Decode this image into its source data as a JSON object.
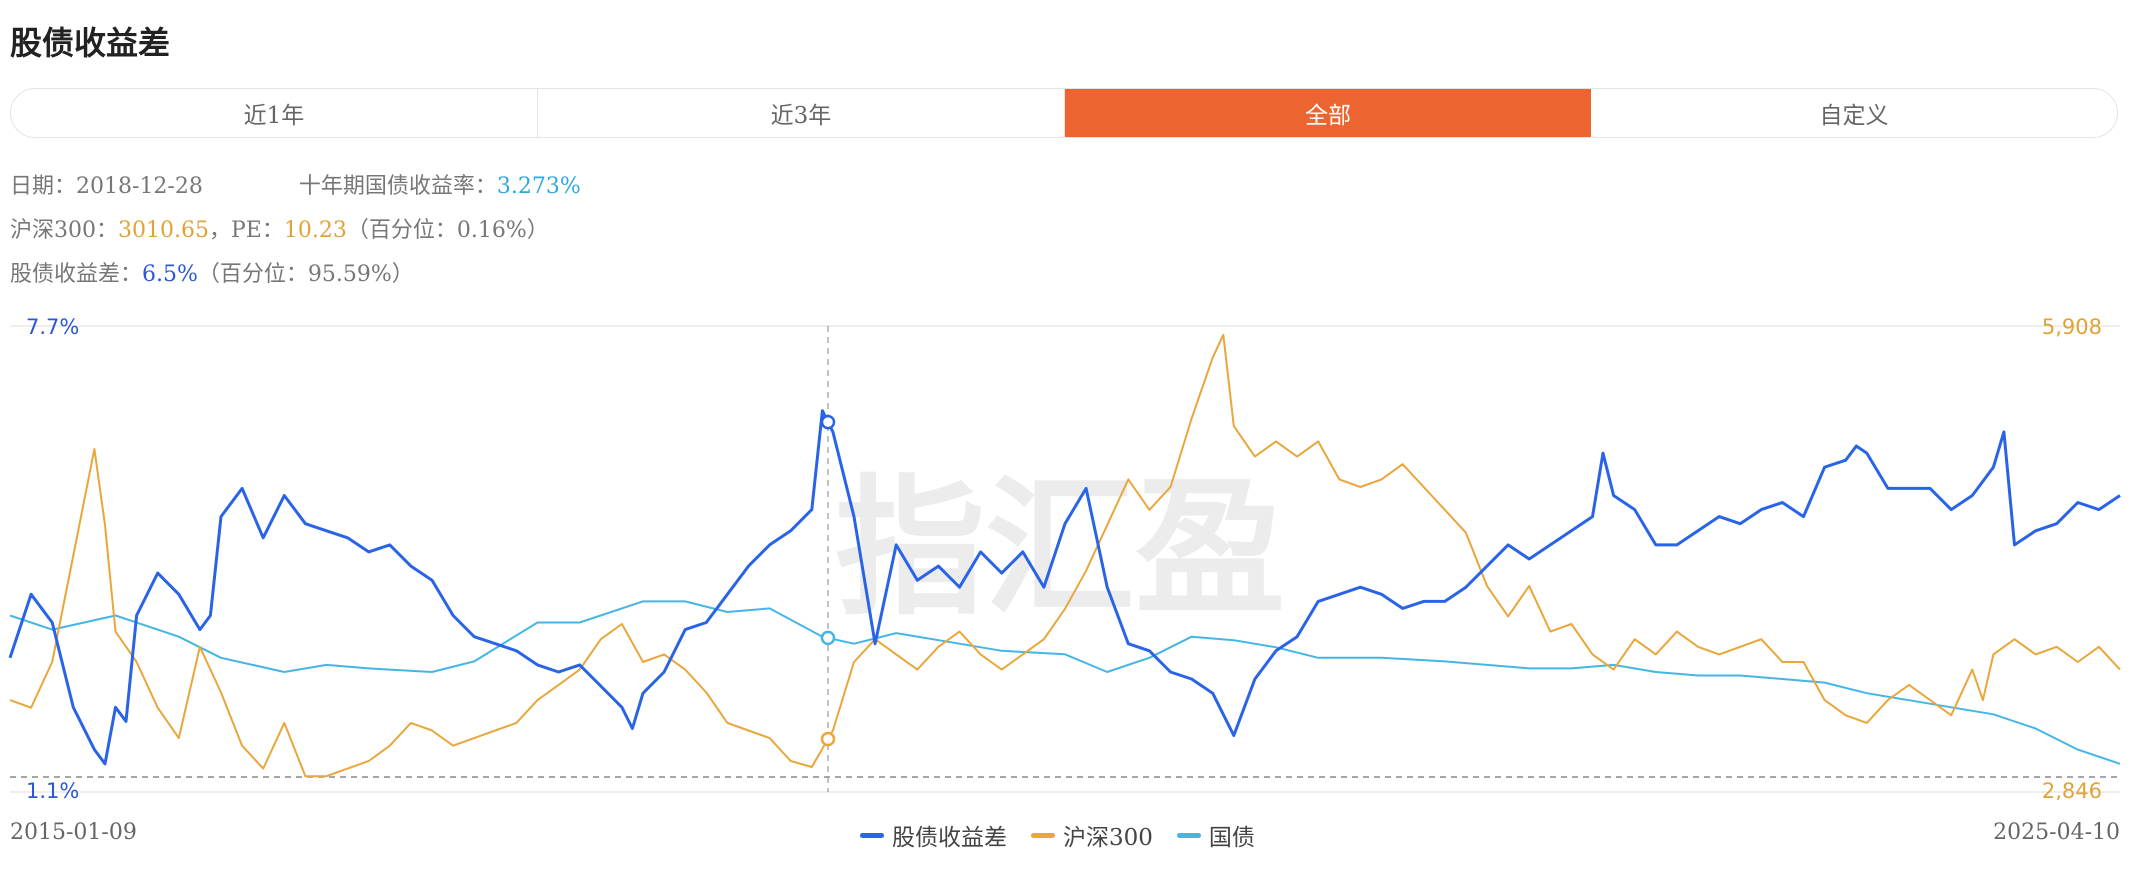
{
  "page": {
    "title": "股债收益差"
  },
  "tabs": [
    {
      "label": "近1年",
      "active": false
    },
    {
      "label": "近3年",
      "active": false
    },
    {
      "label": "全部",
      "active": true
    },
    {
      "label": "自定义",
      "active": false
    }
  ],
  "info": {
    "date_label": "日期：",
    "date_value": "2018-12-28",
    "bond_label": "十年期国债收益率：",
    "bond_value": "3.273%",
    "index_label": "沪深300：",
    "index_value": "3010.65",
    "pe_sep": "，PE：",
    "pe_value": "10.23",
    "index_pct": "（百分位：0.16%）",
    "spread_label": "股债收益差：",
    "spread_value": "6.5%",
    "spread_pct": "（百分位：95.59%）"
  },
  "colors": {
    "spread": "#2a64e6",
    "index": "#e9a63a",
    "bond": "#45b5e6",
    "accent": "#ec642f"
  },
  "watermark": "指汇盈",
  "chart_data": {
    "type": "line",
    "x_start": "2015-01-09",
    "x_end": "2025-04-10",
    "crosshair_date": "2018-12-28",
    "left_axis": {
      "labels": [
        "7.7%",
        "1.1%"
      ],
      "range": [
        1.1,
        7.7
      ],
      "unit": "%"
    },
    "right_axis": {
      "labels": [
        "5,908",
        "2,846"
      ],
      "range": [
        2846,
        5908
      ]
    },
    "series": [
      {
        "name": "股债收益差",
        "axis": "left",
        "color": "#2a64e6",
        "points": [
          [
            0,
            3.0
          ],
          [
            0.01,
            3.9
          ],
          [
            0.02,
            3.5
          ],
          [
            0.03,
            2.3
          ],
          [
            0.04,
            1.7
          ],
          [
            0.045,
            1.5
          ],
          [
            0.05,
            2.3
          ],
          [
            0.055,
            2.1
          ],
          [
            0.06,
            3.6
          ],
          [
            0.07,
            4.2
          ],
          [
            0.08,
            3.9
          ],
          [
            0.09,
            3.4
          ],
          [
            0.095,
            3.6
          ],
          [
            0.1,
            5.0
          ],
          [
            0.11,
            5.4
          ],
          [
            0.12,
            4.7
          ],
          [
            0.13,
            5.3
          ],
          [
            0.14,
            4.9
          ],
          [
            0.15,
            4.8
          ],
          [
            0.16,
            4.7
          ],
          [
            0.17,
            4.5
          ],
          [
            0.18,
            4.6
          ],
          [
            0.19,
            4.3
          ],
          [
            0.2,
            4.1
          ],
          [
            0.21,
            3.6
          ],
          [
            0.22,
            3.3
          ],
          [
            0.23,
            3.2
          ],
          [
            0.24,
            3.1
          ],
          [
            0.25,
            2.9
          ],
          [
            0.26,
            2.8
          ],
          [
            0.27,
            2.9
          ],
          [
            0.28,
            2.6
          ],
          [
            0.29,
            2.3
          ],
          [
            0.295,
            2.0
          ],
          [
            0.3,
            2.5
          ],
          [
            0.31,
            2.8
          ],
          [
            0.32,
            3.4
          ],
          [
            0.33,
            3.5
          ],
          [
            0.34,
            3.9
          ],
          [
            0.35,
            4.3
          ],
          [
            0.36,
            4.6
          ],
          [
            0.37,
            4.8
          ],
          [
            0.38,
            5.1
          ],
          [
            0.385,
            6.5
          ],
          [
            0.39,
            6.2
          ],
          [
            0.4,
            5.0
          ],
          [
            0.41,
            3.2
          ],
          [
            0.42,
            4.6
          ],
          [
            0.43,
            4.1
          ],
          [
            0.44,
            4.3
          ],
          [
            0.45,
            4.0
          ],
          [
            0.46,
            4.5
          ],
          [
            0.47,
            4.2
          ],
          [
            0.48,
            4.5
          ],
          [
            0.49,
            4.0
          ],
          [
            0.5,
            4.9
          ],
          [
            0.51,
            5.4
          ],
          [
            0.52,
            4.0
          ],
          [
            0.53,
            3.2
          ],
          [
            0.54,
            3.1
          ],
          [
            0.55,
            2.8
          ],
          [
            0.56,
            2.7
          ],
          [
            0.57,
            2.5
          ],
          [
            0.58,
            1.9
          ],
          [
            0.59,
            2.7
          ],
          [
            0.6,
            3.1
          ],
          [
            0.61,
            3.3
          ],
          [
            0.62,
            3.8
          ],
          [
            0.63,
            3.9
          ],
          [
            0.64,
            4.0
          ],
          [
            0.65,
            3.9
          ],
          [
            0.66,
            3.7
          ],
          [
            0.67,
            3.8
          ],
          [
            0.68,
            3.8
          ],
          [
            0.69,
            4.0
          ],
          [
            0.7,
            4.3
          ],
          [
            0.71,
            4.6
          ],
          [
            0.72,
            4.4
          ],
          [
            0.73,
            4.6
          ],
          [
            0.74,
            4.8
          ],
          [
            0.75,
            5.0
          ],
          [
            0.755,
            5.9
          ],
          [
            0.76,
            5.3
          ],
          [
            0.77,
            5.1
          ],
          [
            0.78,
            4.6
          ],
          [
            0.79,
            4.6
          ],
          [
            0.8,
            4.8
          ],
          [
            0.81,
            5.0
          ],
          [
            0.82,
            4.9
          ],
          [
            0.83,
            5.1
          ],
          [
            0.84,
            5.2
          ],
          [
            0.85,
            5.0
          ],
          [
            0.86,
            5.7
          ],
          [
            0.87,
            5.8
          ],
          [
            0.875,
            6.0
          ],
          [
            0.88,
            5.9
          ],
          [
            0.89,
            5.4
          ],
          [
            0.9,
            5.4
          ],
          [
            0.91,
            5.4
          ],
          [
            0.92,
            5.1
          ],
          [
            0.93,
            5.3
          ],
          [
            0.94,
            5.7
          ],
          [
            0.945,
            6.2
          ],
          [
            0.95,
            4.6
          ],
          [
            0.96,
            4.8
          ],
          [
            0.97,
            4.9
          ],
          [
            0.98,
            5.2
          ],
          [
            0.99,
            5.1
          ],
          [
            1.0,
            5.3
          ]
        ]
      },
      {
        "name": "沪深300",
        "axis": "right",
        "color": "#e9a63a",
        "points": [
          [
            0,
            3450
          ],
          [
            0.01,
            3400
          ],
          [
            0.02,
            3700
          ],
          [
            0.03,
            4400
          ],
          [
            0.04,
            5100
          ],
          [
            0.045,
            4600
          ],
          [
            0.05,
            3900
          ],
          [
            0.06,
            3700
          ],
          [
            0.07,
            3400
          ],
          [
            0.08,
            3200
          ],
          [
            0.09,
            3800
          ],
          [
            0.1,
            3500
          ],
          [
            0.11,
            3150
          ],
          [
            0.12,
            3000
          ],
          [
            0.13,
            3300
          ],
          [
            0.14,
            2950
          ],
          [
            0.15,
            2950
          ],
          [
            0.16,
            3000
          ],
          [
            0.17,
            3050
          ],
          [
            0.18,
            3150
          ],
          [
            0.19,
            3300
          ],
          [
            0.2,
            3250
          ],
          [
            0.21,
            3150
          ],
          [
            0.22,
            3200
          ],
          [
            0.23,
            3250
          ],
          [
            0.24,
            3300
          ],
          [
            0.25,
            3450
          ],
          [
            0.26,
            3550
          ],
          [
            0.27,
            3650
          ],
          [
            0.28,
            3850
          ],
          [
            0.29,
            3950
          ],
          [
            0.3,
            3700
          ],
          [
            0.31,
            3750
          ],
          [
            0.32,
            3650
          ],
          [
            0.33,
            3500
          ],
          [
            0.34,
            3300
          ],
          [
            0.35,
            3250
          ],
          [
            0.36,
            3200
          ],
          [
            0.37,
            3050
          ],
          [
            0.38,
            3010
          ],
          [
            0.39,
            3250
          ],
          [
            0.4,
            3700
          ],
          [
            0.41,
            3850
          ],
          [
            0.42,
            3750
          ],
          [
            0.43,
            3650
          ],
          [
            0.44,
            3800
          ],
          [
            0.45,
            3900
          ],
          [
            0.46,
            3750
          ],
          [
            0.47,
            3650
          ],
          [
            0.48,
            3750
          ],
          [
            0.49,
            3850
          ],
          [
            0.5,
            4050
          ],
          [
            0.51,
            4300
          ],
          [
            0.52,
            4600
          ],
          [
            0.53,
            4900
          ],
          [
            0.54,
            4700
          ],
          [
            0.55,
            4850
          ],
          [
            0.56,
            5300
          ],
          [
            0.57,
            5700
          ],
          [
            0.575,
            5850
          ],
          [
            0.58,
            5250
          ],
          [
            0.59,
            5050
          ],
          [
            0.6,
            5150
          ],
          [
            0.61,
            5050
          ],
          [
            0.62,
            5150
          ],
          [
            0.63,
            4900
          ],
          [
            0.64,
            4850
          ],
          [
            0.65,
            4900
          ],
          [
            0.66,
            5000
          ],
          [
            0.67,
            4850
          ],
          [
            0.68,
            4700
          ],
          [
            0.69,
            4550
          ],
          [
            0.7,
            4200
          ],
          [
            0.71,
            4000
          ],
          [
            0.72,
            4200
          ],
          [
            0.73,
            3900
          ],
          [
            0.74,
            3950
          ],
          [
            0.75,
            3750
          ],
          [
            0.76,
            3650
          ],
          [
            0.77,
            3850
          ],
          [
            0.78,
            3750
          ],
          [
            0.79,
            3900
          ],
          [
            0.8,
            3800
          ],
          [
            0.81,
            3750
          ],
          [
            0.82,
            3800
          ],
          [
            0.83,
            3850
          ],
          [
            0.84,
            3700
          ],
          [
            0.85,
            3700
          ],
          [
            0.86,
            3450
          ],
          [
            0.87,
            3350
          ],
          [
            0.88,
            3300
          ],
          [
            0.89,
            3450
          ],
          [
            0.9,
            3550
          ],
          [
            0.91,
            3450
          ],
          [
            0.92,
            3350
          ],
          [
            0.93,
            3650
          ],
          [
            0.935,
            3450
          ],
          [
            0.94,
            3750
          ],
          [
            0.95,
            3850
          ],
          [
            0.96,
            3750
          ],
          [
            0.97,
            3800
          ],
          [
            0.98,
            3700
          ],
          [
            0.99,
            3800
          ],
          [
            1.0,
            3650
          ]
        ]
      },
      {
        "name": "国债",
        "axis": "left",
        "color": "#45b5e6",
        "points": [
          [
            0,
            3.6
          ],
          [
            0.02,
            3.4
          ],
          [
            0.05,
            3.6
          ],
          [
            0.08,
            3.3
          ],
          [
            0.1,
            3.0
          ],
          [
            0.13,
            2.8
          ],
          [
            0.15,
            2.9
          ],
          [
            0.17,
            2.85
          ],
          [
            0.2,
            2.8
          ],
          [
            0.22,
            2.95
          ],
          [
            0.25,
            3.5
          ],
          [
            0.27,
            3.5
          ],
          [
            0.3,
            3.8
          ],
          [
            0.32,
            3.8
          ],
          [
            0.34,
            3.65
          ],
          [
            0.36,
            3.7
          ],
          [
            0.385,
            3.3
          ],
          [
            0.4,
            3.2
          ],
          [
            0.42,
            3.35
          ],
          [
            0.45,
            3.2
          ],
          [
            0.47,
            3.1
          ],
          [
            0.5,
            3.05
          ],
          [
            0.52,
            2.8
          ],
          [
            0.54,
            3.0
          ],
          [
            0.56,
            3.3
          ],
          [
            0.58,
            3.25
          ],
          [
            0.6,
            3.15
          ],
          [
            0.62,
            3.0
          ],
          [
            0.65,
            3.0
          ],
          [
            0.68,
            2.95
          ],
          [
            0.7,
            2.9
          ],
          [
            0.72,
            2.85
          ],
          [
            0.74,
            2.85
          ],
          [
            0.76,
            2.9
          ],
          [
            0.78,
            2.8
          ],
          [
            0.8,
            2.75
          ],
          [
            0.82,
            2.75
          ],
          [
            0.84,
            2.7
          ],
          [
            0.86,
            2.65
          ],
          [
            0.88,
            2.5
          ],
          [
            0.9,
            2.4
          ],
          [
            0.92,
            2.3
          ],
          [
            0.94,
            2.2
          ],
          [
            0.96,
            2.0
          ],
          [
            0.98,
            1.7
          ],
          [
            1.0,
            1.5
          ]
        ]
      }
    ]
  }
}
